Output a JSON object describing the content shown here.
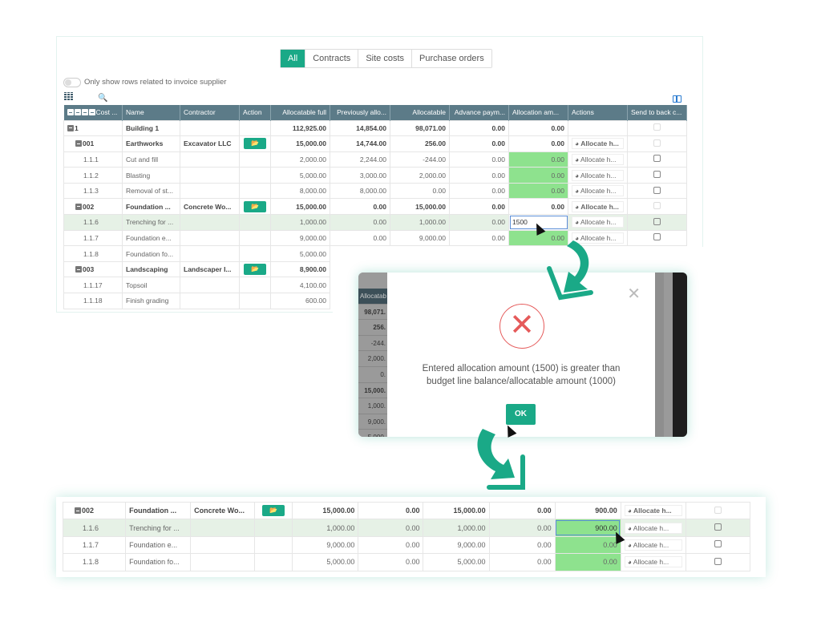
{
  "tabs": [
    "All",
    "Contracts",
    "Site costs",
    "Purchase orders"
  ],
  "toggle_label": "Only show rows related to invoice supplier",
  "columns": [
    "Cost ...",
    "Name",
    "Contractor",
    "Action",
    "Allocatable full",
    "Previously allo...",
    "Allocatable",
    "Advance paym...",
    "Allocation am...",
    "Actions",
    "Send to back c..."
  ],
  "action_label": "Allocate h...",
  "rows": [
    {
      "code": "1",
      "name": "Building 1",
      "contractor": "",
      "folder": false,
      "full": "112,925.00",
      "prev": "14,854.00",
      "alloc": "98,071.00",
      "adv": "0.00",
      "amt": "0.00",
      "level": 0,
      "bold": true,
      "actions": false,
      "check": "disabled"
    },
    {
      "code": "001",
      "name": "Earthworks",
      "contractor": "Excavator LLC",
      "folder": true,
      "full": "15,000.00",
      "prev": "14,744.00",
      "alloc": "256.00",
      "adv": "0.00",
      "amt": "0.00",
      "level": 1,
      "bold": true,
      "actions": true,
      "check": "disabled"
    },
    {
      "code": "1.1.1",
      "name": "Cut and fill",
      "contractor": "",
      "folder": false,
      "full": "2,000.00",
      "prev": "2,244.00",
      "alloc": "-244.00",
      "adv": "0.00",
      "amt": "0.00",
      "level": 2,
      "green": true,
      "actions": true,
      "check": "on"
    },
    {
      "code": "1.1.2",
      "name": "Blasting",
      "contractor": "",
      "folder": false,
      "full": "5,000.00",
      "prev": "3,000.00",
      "alloc": "2,000.00",
      "adv": "0.00",
      "amt": "0.00",
      "level": 2,
      "green": true,
      "actions": true,
      "check": "on"
    },
    {
      "code": "1.1.3",
      "name": "Removal of st...",
      "contractor": "",
      "folder": false,
      "full": "8,000.00",
      "prev": "8,000.00",
      "alloc": "0.00",
      "adv": "0.00",
      "amt": "0.00",
      "level": 2,
      "green": true,
      "actions": true,
      "check": "on"
    },
    {
      "code": "002",
      "name": "Foundation ...",
      "contractor": "Concrete Wo...",
      "folder": true,
      "full": "15,000.00",
      "prev": "0.00",
      "alloc": "15,000.00",
      "adv": "0.00",
      "amt": "0.00",
      "level": 1,
      "bold": true,
      "actions": true,
      "check": "disabled"
    },
    {
      "code": "1.1.6",
      "name": "Trenching for ...",
      "contractor": "",
      "folder": false,
      "full": "1,000.00",
      "prev": "0.00",
      "alloc": "1,000.00",
      "adv": "0.00",
      "amt": "1500",
      "level": 2,
      "hl": true,
      "edit": true,
      "actions": true,
      "check": "on"
    },
    {
      "code": "1.1.7",
      "name": "Foundation e...",
      "contractor": "",
      "folder": false,
      "full": "9,000.00",
      "prev": "0.00",
      "alloc": "9,000.00",
      "adv": "0.00",
      "amt": "0.00",
      "level": 2,
      "green": true,
      "actions": true,
      "check": "on"
    },
    {
      "code": "1.1.8",
      "name": "Foundation fo...",
      "contractor": "",
      "folder": false,
      "full": "5,000.00",
      "level": 2
    },
    {
      "code": "003",
      "name": "Landscaping",
      "contractor": "Landscaper I...",
      "folder": true,
      "full": "8,900.00",
      "level": 1,
      "bold": true
    },
    {
      "code": "1.1.17",
      "name": "Topsoil",
      "contractor": "",
      "folder": false,
      "full": "4,100.00",
      "level": 2
    },
    {
      "code": "1.1.18",
      "name": "Finish grading",
      "contractor": "",
      "folder": false,
      "full": "600.00",
      "level": 2
    }
  ],
  "modal": {
    "bg_header": "Allocatab",
    "bg_values": [
      "98,071.",
      "256.",
      "-244.",
      "2,000.",
      "0.",
      "15,000.",
      "1,000.",
      "9,000.",
      "5,000."
    ],
    "message_line1": "Entered allocation amount (1500) is greater than",
    "message_line2": "budget line balance/allocatable amount (1000)",
    "ok_label": "OK"
  },
  "after_rows": [
    {
      "code": "002",
      "name": "Foundation ...",
      "contractor": "Concrete Wo...",
      "folder": true,
      "full": "15,000.00",
      "prev": "0.00",
      "alloc": "15,000.00",
      "adv": "0.00",
      "amt": "900.00",
      "level": 1,
      "bold": true,
      "actions": true,
      "check": "disabled"
    },
    {
      "code": "1.1.6",
      "name": "Trenching for ...",
      "contractor": "",
      "folder": false,
      "full": "1,000.00",
      "prev": "0.00",
      "alloc": "1,000.00",
      "adv": "0.00",
      "amt": "900.00",
      "level": 2,
      "hl": true,
      "green": true,
      "edit": true,
      "actions": true,
      "check": "on"
    },
    {
      "code": "1.1.7",
      "name": "Foundation e...",
      "contractor": "",
      "folder": false,
      "full": "9,000.00",
      "prev": "0.00",
      "alloc": "9,000.00",
      "adv": "0.00",
      "amt": "0.00",
      "level": 2,
      "green": true,
      "actions": true,
      "check": "on"
    },
    {
      "code": "1.1.8",
      "name": "Foundation fo...",
      "contractor": "",
      "folder": false,
      "full": "5,000.00",
      "prev": "0.00",
      "alloc": "5,000.00",
      "adv": "0.00",
      "amt": "0.00",
      "level": 2,
      "green": true,
      "actions": true,
      "check": "on"
    }
  ],
  "colors": {
    "accent": "#1aa987",
    "header": "#5c7b88",
    "green_cell": "#8ee28e",
    "error": "#e55a5a"
  }
}
